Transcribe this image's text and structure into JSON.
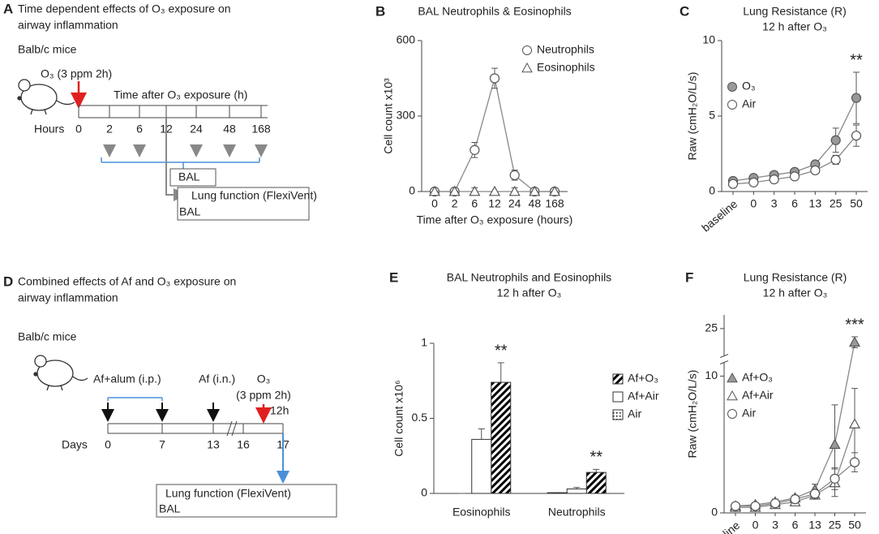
{
  "panel_a": {
    "label": "A",
    "title": [
      "Time dependent effects of O₃ exposure on",
      "airway inflammation"
    ],
    "subject": "Balb/c mice",
    "exposure": "O₃ (3 ppm 2h)",
    "timeline_label": "Time after O₃ exposure (h)",
    "axis_label": "Hours",
    "times": [
      "0",
      "2",
      "6",
      "12",
      "24",
      "48",
      "168"
    ],
    "box_small": "BAL",
    "box_large": [
      "Lung function (FlexiVent)",
      "BAL"
    ]
  },
  "panel_d": {
    "label": "D",
    "title": [
      "Combined effects of Af and O₃ exposure on",
      "airway inflammation"
    ],
    "subject": "Balb/c mice",
    "sensitization": "Af+alum (i.p.)",
    "challenge": "Af (i.n.)",
    "exposure": [
      "O₃",
      "(3 ppm 2h)"
    ],
    "delay": "12h",
    "axis_label": "Days",
    "days": [
      "0",
      "7",
      "13",
      "16",
      "17"
    ],
    "box_large": [
      "Lung function (FlexiVent)",
      "BAL"
    ]
  },
  "chart_data": [
    {
      "type": "line",
      "panel": "B",
      "title": "BAL Neutrophils & Eosinophils",
      "y_label": "Cell count x10³",
      "x_label": "Time after O₃ exposure (hours)",
      "categories": [
        "0",
        "2",
        "6",
        "12",
        "24",
        "48",
        "168"
      ],
      "ylim": [
        0,
        600
      ],
      "yticks": [
        0,
        300,
        600
      ],
      "legend": "upper right",
      "series": [
        {
          "name": "Neutrophils",
          "color": "#ffffff",
          "marker": "circle",
          "values": [
            0,
            0,
            165,
            450,
            65,
            0,
            0
          ],
          "errors": [
            0,
            0,
            30,
            40,
            20,
            0,
            0
          ]
        },
        {
          "name": "Eosinophils",
          "color": "#ffffff",
          "marker": "triangle",
          "values": [
            0,
            0,
            0,
            0,
            0,
            0,
            0
          ],
          "errors": [
            0,
            0,
            15,
            0,
            15,
            0,
            0
          ]
        }
      ]
    },
    {
      "type": "line",
      "panel": "C",
      "title": "Lung Resistance (R)",
      "subtitle": "12 h after O₃",
      "y_label": "Raw (cmH₂O/L/s)",
      "categories": [
        "baseline",
        "0",
        "3",
        "6",
        "13",
        "25",
        "50"
      ],
      "ylim": [
        0,
        10
      ],
      "yticks": [
        0,
        5,
        10
      ],
      "legend": "upper left",
      "annotations": [
        {
          "text": "**",
          "category": "50"
        }
      ],
      "series": [
        {
          "name": "O₃",
          "color": "#999999",
          "marker": "circle",
          "values": [
            0.7,
            0.9,
            1.1,
            1.3,
            1.8,
            3.4,
            6.2
          ],
          "errors": [
            0.1,
            0.1,
            0.1,
            0.1,
            0.2,
            0.8,
            1.7
          ]
        },
        {
          "name": "Air",
          "color": "#ffffff",
          "marker": "circle",
          "values": [
            0.5,
            0.6,
            0.8,
            1.0,
            1.4,
            2.1,
            3.7
          ],
          "errors": [
            0.1,
            0.1,
            0.1,
            0.1,
            0.2,
            0.3,
            0.7
          ]
        }
      ]
    },
    {
      "type": "bar",
      "panel": "E",
      "title": "BAL Neutrophils and Eosinophils",
      "subtitle": "12 h after O₃",
      "y_label": "Cell count x10⁶",
      "categories": [
        "Eosinophils",
        "Neutrophils"
      ],
      "ylim": [
        0,
        1
      ],
      "yticks": [
        0,
        0.5,
        1
      ],
      "legend": "upper right",
      "annotations": [
        {
          "text": "**",
          "category": "Eosinophils"
        },
        {
          "text": "**",
          "category": "Neutrophils"
        }
      ],
      "series": [
        {
          "name": "Af+O₃",
          "color": "#000000",
          "pattern": "hatch",
          "values": [
            0.74,
            0.14
          ],
          "errors": [
            0.13,
            0.02
          ]
        },
        {
          "name": "Af+Air",
          "color": "#ffffff",
          "pattern": "none",
          "values": [
            0.36,
            0.03
          ],
          "errors": [
            0.07,
            0.01
          ]
        },
        {
          "name": "Air",
          "color": "#000000",
          "pattern": "dots",
          "values": [
            0,
            0.005
          ],
          "errors": [
            0,
            0
          ]
        }
      ]
    },
    {
      "type": "line",
      "panel": "F",
      "title": "Lung Resistance (R)",
      "subtitle": "12 h after O₃",
      "y_label": "Raw (cmH₂O/L/s)",
      "categories": [
        "baseline",
        "0",
        "3",
        "6",
        "13",
        "25",
        "50"
      ],
      "ylim": [
        0,
        26
      ],
      "ybreak": [
        11,
        23
      ],
      "yticks": [
        0,
        10,
        25
      ],
      "legend": "upper left",
      "annotations": [
        {
          "text": "***",
          "category": "50"
        }
      ],
      "series": [
        {
          "name": "Af+O₃",
          "color": "#999999",
          "marker": "triangle",
          "values": [
            0.5,
            0.6,
            0.8,
            1.1,
            1.7,
            5.0,
            24
          ],
          "errors": [
            0.1,
            0.1,
            0.2,
            0.2,
            0.4,
            2.9,
            0.4
          ]
        },
        {
          "name": "Af+Air",
          "color": "#ffffff",
          "marker": "triangle",
          "values": [
            0.4,
            0.4,
            0.6,
            0.8,
            1.3,
            2.2,
            6.5
          ],
          "errors": [
            0.1,
            0.1,
            0.1,
            0.2,
            0.3,
            1.0,
            2.6
          ]
        },
        {
          "name": "Air",
          "color": "#ffffff",
          "marker": "circle",
          "values": [
            0.5,
            0.5,
            0.7,
            1.0,
            1.4,
            2.5,
            3.7
          ],
          "errors": [
            0.1,
            0.1,
            0.1,
            0.2,
            0.3,
            0.8,
            0.7
          ]
        }
      ]
    }
  ]
}
